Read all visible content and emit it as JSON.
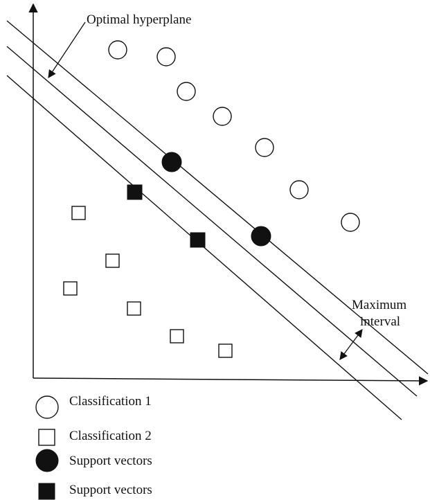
{
  "labels": {
    "hyperplane": "Optimal hyperplane",
    "margin_line1": "Maximum",
    "margin_line2": "interval"
  },
  "legend": [
    {
      "shape": "open-circle",
      "label": "Classification 1"
    },
    {
      "shape": "open-square",
      "label": "Classification 2"
    },
    {
      "shape": "filled-circle",
      "label": "Support vectors"
    },
    {
      "shape": "filled-square",
      "label": "Support vectors"
    }
  ],
  "colors": {
    "stroke": "#111111",
    "background": "#ffffff"
  }
}
